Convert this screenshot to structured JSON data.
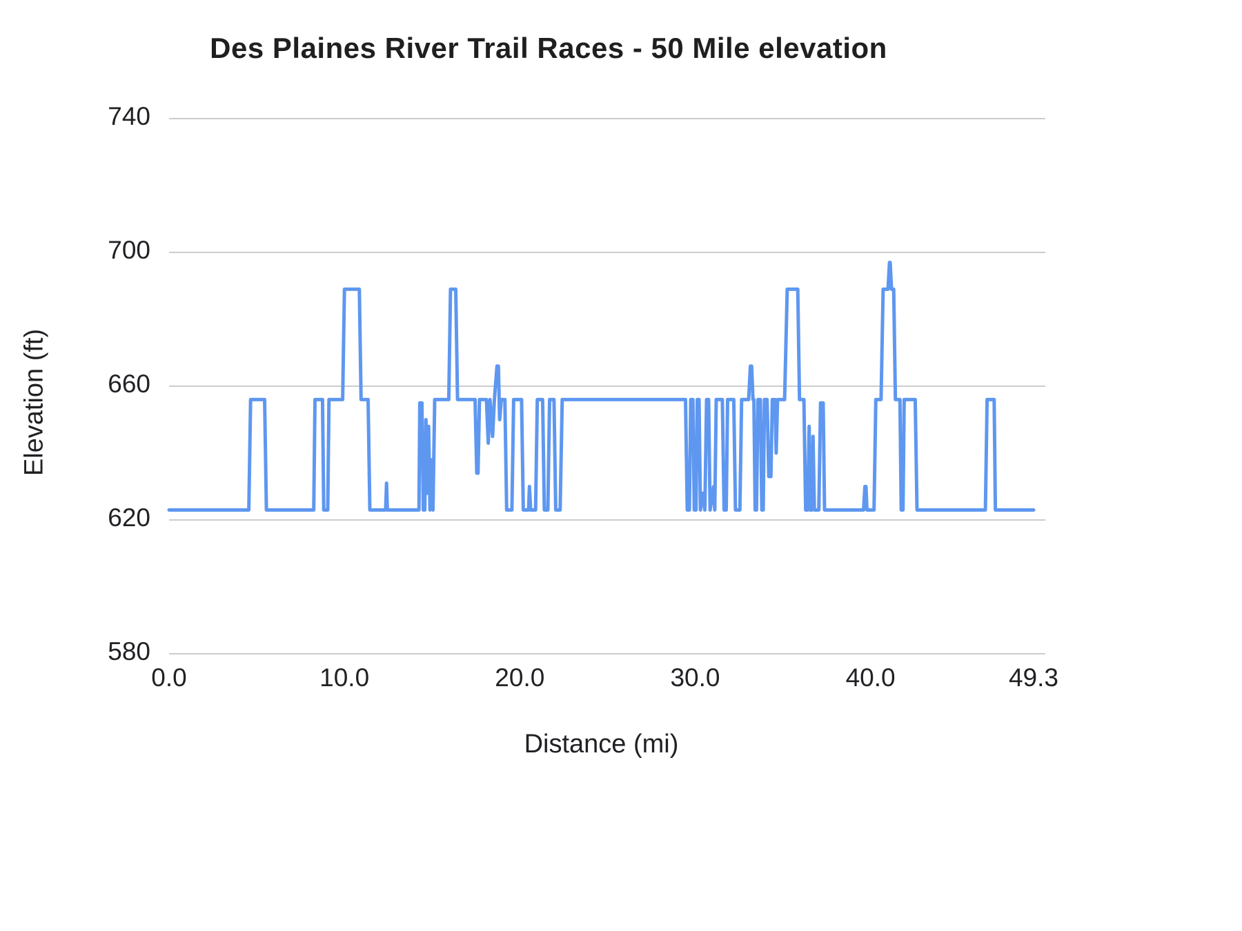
{
  "colors": {
    "line": "#5e97f0",
    "grid": "#cccccc",
    "title_text": "#1f1f1f",
    "tick_text": "#202124"
  },
  "chart_data": {
    "type": "line",
    "title": "Des Plaines River Trail Races - 50 Mile elevation",
    "xlabel": "Distance (mi)",
    "ylabel": "Elevation (ft)",
    "xlim": [
      0,
      49.3
    ],
    "ylim": [
      580,
      740
    ],
    "grid": "horizontal",
    "legend": "none",
    "yticks": [
      {
        "v": 580,
        "label": "580"
      },
      {
        "v": 620,
        "label": "620"
      },
      {
        "v": 660,
        "label": "660"
      },
      {
        "v": 700,
        "label": "700"
      },
      {
        "v": 740,
        "label": "740"
      }
    ],
    "xticks": [
      {
        "v": 0,
        "label": "0.0"
      },
      {
        "v": 10,
        "label": "10.0"
      },
      {
        "v": 20,
        "label": "20.0"
      },
      {
        "v": 30,
        "label": "30.0"
      },
      {
        "v": 40,
        "label": "40.0"
      },
      {
        "v": 49.3,
        "label": "49.3"
      }
    ],
    "series_name": "Elevation (ft)",
    "points": [
      [
        0.0,
        623
      ],
      [
        4.55,
        623
      ],
      [
        4.65,
        656
      ],
      [
        5.45,
        656
      ],
      [
        5.55,
        623
      ],
      [
        8.25,
        623
      ],
      [
        8.32,
        656
      ],
      [
        8.75,
        656
      ],
      [
        8.82,
        623
      ],
      [
        9.05,
        623
      ],
      [
        9.12,
        656
      ],
      [
        9.9,
        656
      ],
      [
        10.0,
        689
      ],
      [
        10.85,
        689
      ],
      [
        10.95,
        656
      ],
      [
        11.35,
        656
      ],
      [
        11.45,
        623
      ],
      [
        12.35,
        623
      ],
      [
        12.4,
        631
      ],
      [
        12.45,
        623
      ],
      [
        14.25,
        623
      ],
      [
        14.3,
        655
      ],
      [
        14.42,
        655
      ],
      [
        14.5,
        623
      ],
      [
        14.58,
        623
      ],
      [
        14.65,
        650
      ],
      [
        14.72,
        628
      ],
      [
        14.8,
        648
      ],
      [
        14.88,
        623
      ],
      [
        14.95,
        638
      ],
      [
        15.05,
        623
      ],
      [
        15.15,
        656
      ],
      [
        15.95,
        656
      ],
      [
        16.05,
        689
      ],
      [
        16.35,
        689
      ],
      [
        16.45,
        656
      ],
      [
        17.45,
        656
      ],
      [
        17.55,
        634
      ],
      [
        17.62,
        634
      ],
      [
        17.7,
        656
      ],
      [
        18.1,
        656
      ],
      [
        18.2,
        643
      ],
      [
        18.3,
        656
      ],
      [
        18.45,
        645
      ],
      [
        18.55,
        656
      ],
      [
        18.7,
        666
      ],
      [
        18.78,
        666
      ],
      [
        18.85,
        650
      ],
      [
        18.95,
        656
      ],
      [
        19.15,
        656
      ],
      [
        19.25,
        623
      ],
      [
        19.55,
        623
      ],
      [
        19.65,
        656
      ],
      [
        20.1,
        656
      ],
      [
        20.2,
        623
      ],
      [
        20.5,
        623
      ],
      [
        20.55,
        630
      ],
      [
        20.62,
        623
      ],
      [
        20.9,
        623
      ],
      [
        21.0,
        656
      ],
      [
        21.3,
        656
      ],
      [
        21.4,
        623
      ],
      [
        21.6,
        623
      ],
      [
        21.7,
        656
      ],
      [
        21.95,
        656
      ],
      [
        22.05,
        623
      ],
      [
        22.3,
        623
      ],
      [
        22.42,
        656
      ],
      [
        29.45,
        656
      ],
      [
        29.55,
        623
      ],
      [
        29.67,
        623
      ],
      [
        29.75,
        656
      ],
      [
        29.87,
        656
      ],
      [
        29.95,
        623
      ],
      [
        30.05,
        623
      ],
      [
        30.12,
        656
      ],
      [
        30.22,
        656
      ],
      [
        30.3,
        623
      ],
      [
        30.42,
        628
      ],
      [
        30.55,
        623
      ],
      [
        30.65,
        656
      ],
      [
        30.77,
        656
      ],
      [
        30.85,
        623
      ],
      [
        31.05,
        630
      ],
      [
        31.12,
        623
      ],
      [
        31.2,
        656
      ],
      [
        31.55,
        656
      ],
      [
        31.65,
        623
      ],
      [
        31.77,
        623
      ],
      [
        31.85,
        656
      ],
      [
        32.2,
        656
      ],
      [
        32.3,
        623
      ],
      [
        32.55,
        623
      ],
      [
        32.65,
        656
      ],
      [
        33.05,
        656
      ],
      [
        33.15,
        666
      ],
      [
        33.22,
        666
      ],
      [
        33.3,
        656
      ],
      [
        33.35,
        656
      ],
      [
        33.42,
        623
      ],
      [
        33.5,
        623
      ],
      [
        33.58,
        656
      ],
      [
        33.72,
        656
      ],
      [
        33.8,
        623
      ],
      [
        33.88,
        623
      ],
      [
        33.95,
        656
      ],
      [
        34.1,
        656
      ],
      [
        34.2,
        633
      ],
      [
        34.32,
        633
      ],
      [
        34.4,
        656
      ],
      [
        34.55,
        656
      ],
      [
        34.62,
        640
      ],
      [
        34.7,
        656
      ],
      [
        35.1,
        656
      ],
      [
        35.25,
        689
      ],
      [
        35.85,
        689
      ],
      [
        35.95,
        656
      ],
      [
        36.2,
        656
      ],
      [
        36.3,
        623
      ],
      [
        36.42,
        623
      ],
      [
        36.5,
        648
      ],
      [
        36.56,
        623
      ],
      [
        36.66,
        623
      ],
      [
        36.72,
        645
      ],
      [
        36.8,
        623
      ],
      [
        37.05,
        623
      ],
      [
        37.15,
        655
      ],
      [
        37.3,
        655
      ],
      [
        37.38,
        623
      ],
      [
        39.6,
        623
      ],
      [
        39.68,
        630
      ],
      [
        39.74,
        630
      ],
      [
        39.8,
        623
      ],
      [
        40.2,
        623
      ],
      [
        40.3,
        656
      ],
      [
        40.6,
        656
      ],
      [
        40.72,
        689
      ],
      [
        41.0,
        689
      ],
      [
        41.08,
        697
      ],
      [
        41.12,
        697
      ],
      [
        41.2,
        689
      ],
      [
        41.32,
        689
      ],
      [
        41.42,
        656
      ],
      [
        41.68,
        656
      ],
      [
        41.75,
        623
      ],
      [
        41.85,
        623
      ],
      [
        41.92,
        656
      ],
      [
        42.55,
        656
      ],
      [
        42.65,
        623
      ],
      [
        46.55,
        623
      ],
      [
        46.65,
        656
      ],
      [
        47.05,
        656
      ],
      [
        47.12,
        623
      ],
      [
        49.3,
        623
      ]
    ]
  }
}
